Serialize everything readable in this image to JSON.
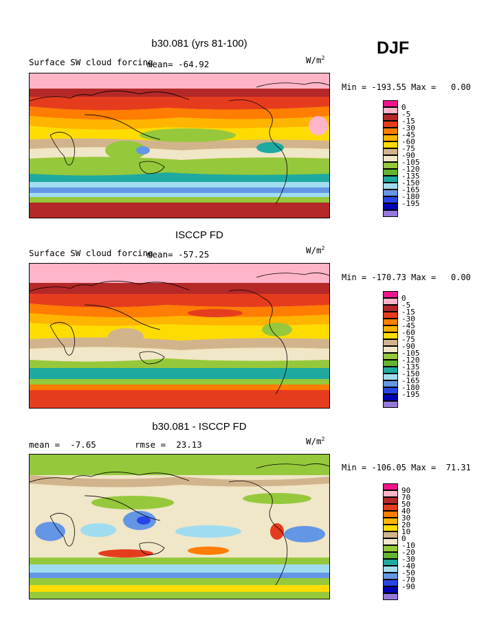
{
  "season": "DJF",
  "units": "W/m",
  "units_exp": "2",
  "panels": [
    {
      "title": "b30.081 (yrs 81-100)",
      "left_label": "Surface SW cloud forcing",
      "stat_label": "mean= -64.92",
      "min_max": "Min = -193.55 Max =   0.00",
      "colorbar": {
        "ticks": [
          "0",
          "-5",
          "-15",
          "-30",
          "-45",
          "-60",
          "-75",
          "-90",
          "-105",
          "-120",
          "-135",
          "-150",
          "-165",
          "-180",
          "-195"
        ],
        "colors": [
          "#f0148c",
          "#ffb4c8",
          "#b42828",
          "#e63c1e",
          "#ff7d00",
          "#ffb400",
          "#ffdc00",
          "#d2b48c",
          "#f0e6c8",
          "#96c83c",
          "#64b432",
          "#1eaaa0",
          "#a0dcf0",
          "#6496e6",
          "#2846e6",
          "#0000b4",
          "#9678dc"
        ]
      }
    },
    {
      "title": "ISCCP FD",
      "left_label": "Surface SW cloud forcing",
      "stat_label": "mean= -57.25",
      "min_max": "Min = -170.73 Max =   0.00",
      "colorbar": {
        "ticks": [
          "0",
          "-5",
          "-15",
          "-30",
          "-45",
          "-60",
          "-75",
          "-90",
          "-105",
          "-120",
          "-135",
          "-150",
          "-165",
          "-180",
          "-195"
        ],
        "colors": [
          "#f0148c",
          "#ffb4c8",
          "#b42828",
          "#e63c1e",
          "#ff7d00",
          "#ffb400",
          "#ffdc00",
          "#d2b48c",
          "#f0e6c8",
          "#96c83c",
          "#64b432",
          "#1eaaa0",
          "#a0dcf0",
          "#6496e6",
          "#2846e6",
          "#0000b4",
          "#9678dc"
        ]
      }
    },
    {
      "title": "b30.081 - ISCCP FD",
      "left_label": "mean =  -7.65",
      "stat_label": "rmse =  23.13",
      "min_max": "Min = -106.05 Max =  71.31",
      "colorbar": {
        "ticks": [
          "90",
          "70",
          "50",
          "40",
          "30",
          "20",
          "10",
          "0",
          "-10",
          "-20",
          "-30",
          "-40",
          "-50",
          "-70",
          "-90"
        ],
        "colors": [
          "#f0148c",
          "#ffb4c8",
          "#b42828",
          "#e63c1e",
          "#ff7d00",
          "#ffb400",
          "#ffdc00",
          "#d2b48c",
          "#f0e6c8",
          "#96c83c",
          "#64b432",
          "#1eaaa0",
          "#a0dcf0",
          "#6496e6",
          "#2846e6",
          "#0000b4",
          "#9678dc"
        ]
      }
    }
  ]
}
